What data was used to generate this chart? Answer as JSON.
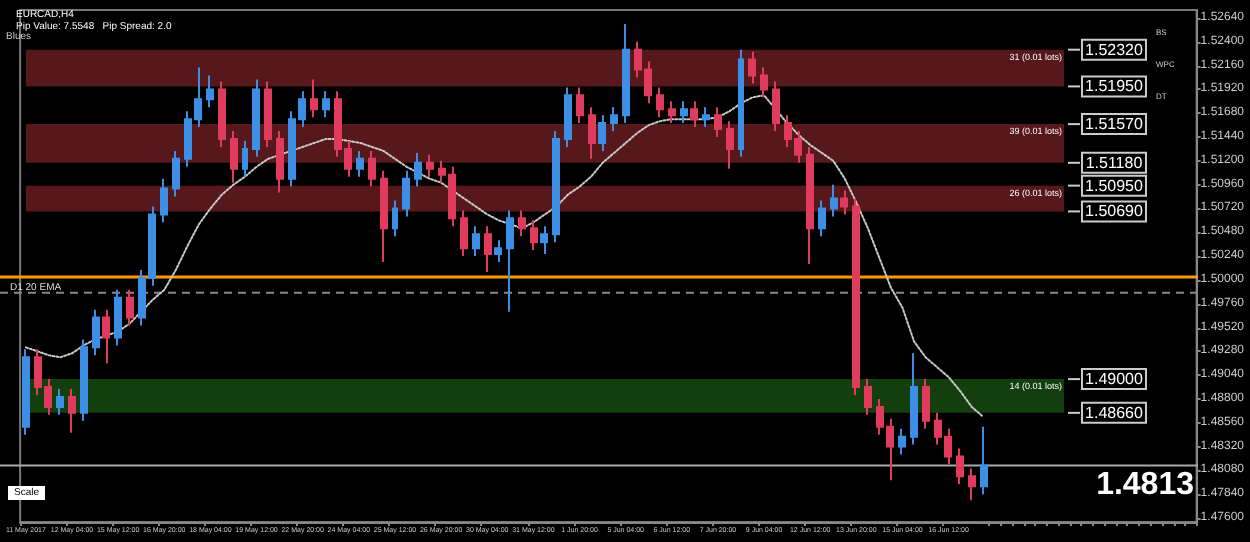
{
  "chart_data": {
    "type": "candlestick",
    "title": "EURCAD,H4",
    "subtitle": "Pip Value: 7.5548   Pip Spread: 2.0",
    "categories": [
      "11 May 2017",
      null,
      null,
      null,
      "12 May 04:00",
      null,
      null,
      null,
      "15 May 12:00",
      null,
      null,
      null,
      "16 May 20:00",
      null,
      null,
      null,
      "18 May 04:00",
      null,
      null,
      null,
      "19 May 12:00",
      null,
      null,
      null,
      "22 May 20:00",
      null,
      null,
      null,
      "24 May 04:00",
      null,
      null,
      null,
      "25 May 12:00",
      null,
      null,
      null,
      "26 May 20:00",
      null,
      null,
      null,
      "30 May 04:00",
      null,
      null,
      null,
      "31 May 12:00",
      null,
      null,
      null,
      "1 Jun 20:00",
      null,
      null,
      null,
      "5 Jun 04:00",
      null,
      null,
      null,
      "6 Jun 12:00",
      null,
      null,
      null,
      "7 Jun 20:00",
      null,
      null,
      null,
      "9 Jun 04:00",
      null,
      null,
      null,
      "12 Jun 12:00",
      null,
      null,
      null,
      "13 Jun 20:00",
      null,
      null,
      null,
      "15 Jun 04:00",
      null,
      null,
      null,
      "16 Jun 12:00",
      null,
      null,
      null
    ],
    "series": [
      {
        "ohlc": [
          [
            1.4852,
            1.493,
            1.4844,
            1.4922
          ],
          [
            1.4922,
            1.493,
            1.4884,
            1.4892
          ],
          [
            1.4892,
            1.49,
            1.4864,
            1.4872
          ],
          [
            1.4872,
            1.489,
            1.4864,
            1.4882
          ],
          [
            1.4882,
            1.489,
            1.4846,
            1.4866
          ],
          [
            1.4866,
            1.494,
            1.4858,
            1.4932
          ],
          [
            1.4932,
            1.497,
            1.4924,
            1.4962
          ],
          [
            1.4962,
            1.497,
            1.4916,
            1.4942
          ],
          [
            1.4942,
            1.499,
            1.4934,
            1.4982
          ],
          [
            1.4982,
            1.499,
            1.4954,
            1.4962
          ],
          [
            1.4962,
            1.501,
            1.4954,
            1.5002
          ],
          [
            1.5002,
            1.5074,
            1.4994,
            1.5066
          ],
          [
            1.5066,
            1.5102,
            1.5058,
            1.5092
          ],
          [
            1.5092,
            1.513,
            1.5084,
            1.5122
          ],
          [
            1.5122,
            1.517,
            1.5114,
            1.5162
          ],
          [
            1.5162,
            1.5214,
            1.5154,
            1.5182
          ],
          [
            1.5182,
            1.5206,
            1.5174,
            1.5192
          ],
          [
            1.5192,
            1.52,
            1.5134,
            1.5142
          ],
          [
            1.5142,
            1.515,
            1.5098,
            1.5112
          ],
          [
            1.5112,
            1.514,
            1.5104,
            1.5132
          ],
          [
            1.5132,
            1.5202,
            1.5124,
            1.5192
          ],
          [
            1.5192,
            1.52,
            1.5134,
            1.5142
          ],
          [
            1.5142,
            1.515,
            1.5088,
            1.5102
          ],
          [
            1.5102,
            1.517,
            1.5094,
            1.5162
          ],
          [
            1.5162,
            1.519,
            1.5154,
            1.5182
          ],
          [
            1.5182,
            1.5202,
            1.5164,
            1.5172
          ],
          [
            1.5172,
            1.519,
            1.5164,
            1.5182
          ],
          [
            1.5182,
            1.519,
            1.5124,
            1.5132
          ],
          [
            1.5132,
            1.514,
            1.5104,
            1.5112
          ],
          [
            1.5112,
            1.513,
            1.5104,
            1.5122
          ],
          [
            1.5122,
            1.513,
            1.5094,
            1.5102
          ],
          [
            1.5102,
            1.511,
            1.5018,
            1.5052
          ],
          [
            1.5052,
            1.508,
            1.5044,
            1.5072
          ],
          [
            1.5072,
            1.511,
            1.5064,
            1.5102
          ],
          [
            1.5102,
            1.5128,
            1.5094,
            1.5118
          ],
          [
            1.5118,
            1.5126,
            1.5104,
            1.5112
          ],
          [
            1.5112,
            1.512,
            1.5098,
            1.5106
          ],
          [
            1.5106,
            1.5114,
            1.5054,
            1.5062
          ],
          [
            1.5062,
            1.507,
            1.5024,
            1.5032
          ],
          [
            1.5032,
            1.5054,
            1.5024,
            1.5046
          ],
          [
            1.5046,
            1.5054,
            1.5008,
            1.5026
          ],
          [
            1.5026,
            1.504,
            1.5018,
            1.5032
          ],
          [
            1.5032,
            1.507,
            1.4968,
            1.5062
          ],
          [
            1.5062,
            1.507,
            1.5044,
            1.5052
          ],
          [
            1.5052,
            1.506,
            1.503,
            1.5038
          ],
          [
            1.5038,
            1.5054,
            1.5026,
            1.5046
          ],
          [
            1.5046,
            1.515,
            1.5038,
            1.5142
          ],
          [
            1.5142,
            1.5194,
            1.5134,
            1.5186
          ],
          [
            1.5186,
            1.5194,
            1.5158,
            1.5166
          ],
          [
            1.5166,
            1.5174,
            1.5122,
            1.5138
          ],
          [
            1.5138,
            1.5166,
            1.513,
            1.5158
          ],
          [
            1.5158,
            1.5174,
            1.515,
            1.5166
          ],
          [
            1.5166,
            1.5258,
            1.5158,
            1.5232
          ],
          [
            1.5232,
            1.524,
            1.5204,
            1.5212
          ],
          [
            1.5212,
            1.522,
            1.5178,
            1.5186
          ],
          [
            1.5186,
            1.5194,
            1.5164,
            1.5172
          ],
          [
            1.5172,
            1.518,
            1.5158,
            1.5166
          ],
          [
            1.5166,
            1.518,
            1.5158,
            1.5172
          ],
          [
            1.5172,
            1.518,
            1.5154,
            1.5162
          ],
          [
            1.5162,
            1.5174,
            1.5154,
            1.5166
          ],
          [
            1.5166,
            1.5174,
            1.5144,
            1.5152
          ],
          [
            1.5152,
            1.516,
            1.5112,
            1.5132
          ],
          [
            1.5132,
            1.5232,
            1.5124,
            1.5222
          ],
          [
            1.5222,
            1.523,
            1.5198,
            1.5206
          ],
          [
            1.5206,
            1.5214,
            1.5184,
            1.5192
          ],
          [
            1.5192,
            1.52,
            1.515,
            1.5158
          ],
          [
            1.5158,
            1.5166,
            1.5134,
            1.5142
          ],
          [
            1.5142,
            1.515,
            1.5118,
            1.5126
          ],
          [
            1.5126,
            1.5134,
            1.5016,
            1.5052
          ],
          [
            1.5052,
            1.508,
            1.5044,
            1.5072
          ],
          [
            1.5072,
            1.5096,
            1.5064,
            1.5082
          ],
          [
            1.5082,
            1.509,
            1.5066,
            1.5074
          ],
          [
            1.5074,
            1.5082,
            1.4884,
            1.4892
          ],
          [
            1.4892,
            1.49,
            1.4864,
            1.4872
          ],
          [
            1.4872,
            1.488,
            1.4844,
            1.4852
          ],
          [
            1.4852,
            1.486,
            1.4798,
            1.4832
          ],
          [
            1.4832,
            1.485,
            1.4824,
            1.4842
          ],
          [
            1.4842,
            1.4926,
            1.4834,
            1.4892
          ],
          [
            1.4892,
            1.49,
            1.485,
            1.4858
          ],
          [
            1.4858,
            1.4866,
            1.4834,
            1.4842
          ],
          [
            1.4842,
            1.485,
            1.4814,
            1.4822
          ],
          [
            1.4822,
            1.483,
            1.4794,
            1.4802
          ],
          [
            1.4802,
            1.481,
            1.4778,
            1.4792
          ],
          [
            1.4792,
            1.4852,
            1.4784,
            1.4813
          ]
        ]
      },
      {
        "type": "line",
        "color": "#c8c8c8",
        "line_style": "dotted",
        "marker": "none",
        "values": [
          1.4932,
          1.4928,
          1.4924,
          1.4922,
          1.4926,
          1.4934,
          1.494,
          1.4944,
          1.4948,
          1.4956,
          1.4968,
          1.498,
          1.499,
          1.501,
          1.5034,
          1.5056,
          1.5072,
          1.5086,
          1.5096,
          1.5104,
          1.5114,
          1.5122,
          1.5126,
          1.513,
          1.5134,
          1.5138,
          1.5142,
          1.5142,
          1.514,
          1.5138,
          1.5134,
          1.513,
          1.5122,
          1.5114,
          1.5108,
          1.5102,
          1.5098,
          1.509,
          1.5082,
          1.5074,
          1.5066,
          1.506,
          1.5056,
          1.5052,
          1.5058,
          1.5066,
          1.5074,
          1.5086,
          1.5094,
          1.5104,
          1.5118,
          1.5128,
          1.5138,
          1.5148,
          1.5156,
          1.516,
          1.5162,
          1.5162,
          1.5162,
          1.5162,
          1.5164,
          1.517,
          1.5178,
          1.5184,
          1.5186,
          1.5172,
          1.5158,
          1.5146,
          1.5136,
          1.5128,
          1.512,
          1.5102,
          1.5078,
          1.5052,
          1.5022,
          1.4992,
          1.4972,
          1.4938,
          1.4922,
          1.4912,
          1.4902,
          1.4888,
          1.4872,
          1.4862
        ]
      }
    ],
    "ylim": [
      1.4756,
      1.5272
    ],
    "yticks": [
      {
        "value": 1.476,
        "label": "1.47600"
      },
      {
        "value": 1.4784,
        "label": "1.47840"
      },
      {
        "value": 1.4808,
        "label": "1.48080"
      },
      {
        "value": 1.4832,
        "label": "1.48320"
      },
      {
        "value": 1.4856,
        "label": "1.48560"
      },
      {
        "value": 1.488,
        "label": "1.48800"
      },
      {
        "value": 1.4904,
        "label": "1.49040"
      },
      {
        "value": 1.4928,
        "label": "1.49280"
      },
      {
        "value": 1.4952,
        "label": "1.49520"
      },
      {
        "value": 1.4976,
        "label": "1.49760"
      },
      {
        "value": 1.5,
        "label": "1.50000"
      },
      {
        "value": 1.5024,
        "label": "1.50240"
      },
      {
        "value": 1.5048,
        "label": "1.50480"
      },
      {
        "value": 1.5072,
        "label": "1.50720"
      },
      {
        "value": 1.5096,
        "label": "1.50960"
      },
      {
        "value": 1.512,
        "label": "1.51200"
      },
      {
        "value": 1.5144,
        "label": "1.51440"
      },
      {
        "value": 1.5168,
        "label": "1.51680"
      },
      {
        "value": 1.5192,
        "label": "1.51920"
      },
      {
        "value": 1.5216,
        "label": "1.52160"
      },
      {
        "value": 1.524,
        "label": "1.52400"
      },
      {
        "value": 1.5264,
        "label": "1.52640"
      }
    ],
    "grid": false,
    "bands": [
      {
        "axis": "y",
        "from": 1.5195,
        "to": 1.5232,
        "label": "31 (0.01 lots)",
        "color": "#c0363c"
      },
      {
        "axis": "y",
        "from": 1.5118,
        "to": 1.5157,
        "label": "39 (0.01 lots)",
        "color": "#c0363c"
      },
      {
        "axis": "y",
        "from": 1.5069,
        "to": 1.5095,
        "label": "26 (0.01 lots)",
        "color": "#c0363c"
      },
      {
        "axis": "y",
        "from": 1.4866,
        "to": 1.49,
        "label": "14 (0.01 lots)",
        "color": "#2a8a1e"
      }
    ],
    "ref_lines": [
      {
        "axis": "y",
        "value": 1.5003,
        "label": "D1 20 EMA",
        "color": "#ff9900",
        "line_style": "solid"
      },
      {
        "axis": "y",
        "value": 1.4987,
        "label": null,
        "color": "#888888",
        "line_style": "dashed"
      },
      {
        "axis": "y",
        "value": 1.4813,
        "label": "1.4813",
        "color": "#aaaaaa",
        "line_style": "solid"
      }
    ],
    "annotations": [
      "1.52320",
      "1.51950",
      "1.51570",
      "1.51180",
      "1.50950",
      "1.50690",
      "1.49000",
      "1.48660",
      "Blues",
      "Scale",
      "BS",
      "WPC",
      "DT"
    ]
  }
}
